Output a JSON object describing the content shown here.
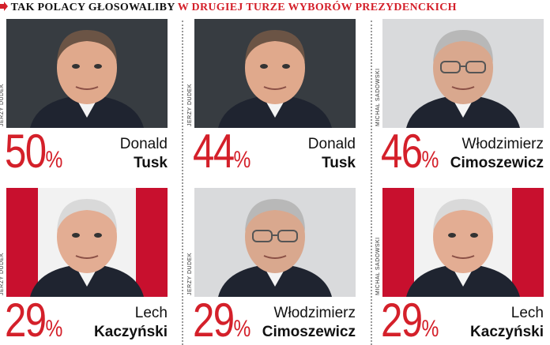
{
  "header": {
    "lead": "TAK POLACY GŁOSOWALIBY",
    "highlight": "W DRUGIEJ TURZE WYBORÓW PREZYDENCKICH"
  },
  "panels": [
    {
      "percent": 50,
      "unit": "%",
      "first_name": "Donald",
      "last_name": "Tusk",
      "credit": "JERZY DUDEK"
    },
    {
      "percent": 44,
      "unit": "%",
      "first_name": "Donald",
      "last_name": "Tusk",
      "credit": "JERZY DUDEK"
    },
    {
      "percent": 46,
      "unit": "%",
      "first_name": "Włodzimierz",
      "last_name": "Cimoszewicz",
      "credit": "MICHAŁ SADOWSKI"
    },
    {
      "percent": 29,
      "unit": "%",
      "first_name": "Lech",
      "last_name": "Kaczyński",
      "credit": "JERZY DUDEK"
    },
    {
      "percent": 29,
      "unit": "%",
      "first_name": "Włodzimierz",
      "last_name": "Cimoszewicz",
      "credit": "JERZY DUDEK"
    },
    {
      "percent": 29,
      "unit": "%",
      "first_name": "Lech",
      "last_name": "Kaczyński",
      "credit": "MICHAŁ SADOWSKI"
    }
  ]
}
